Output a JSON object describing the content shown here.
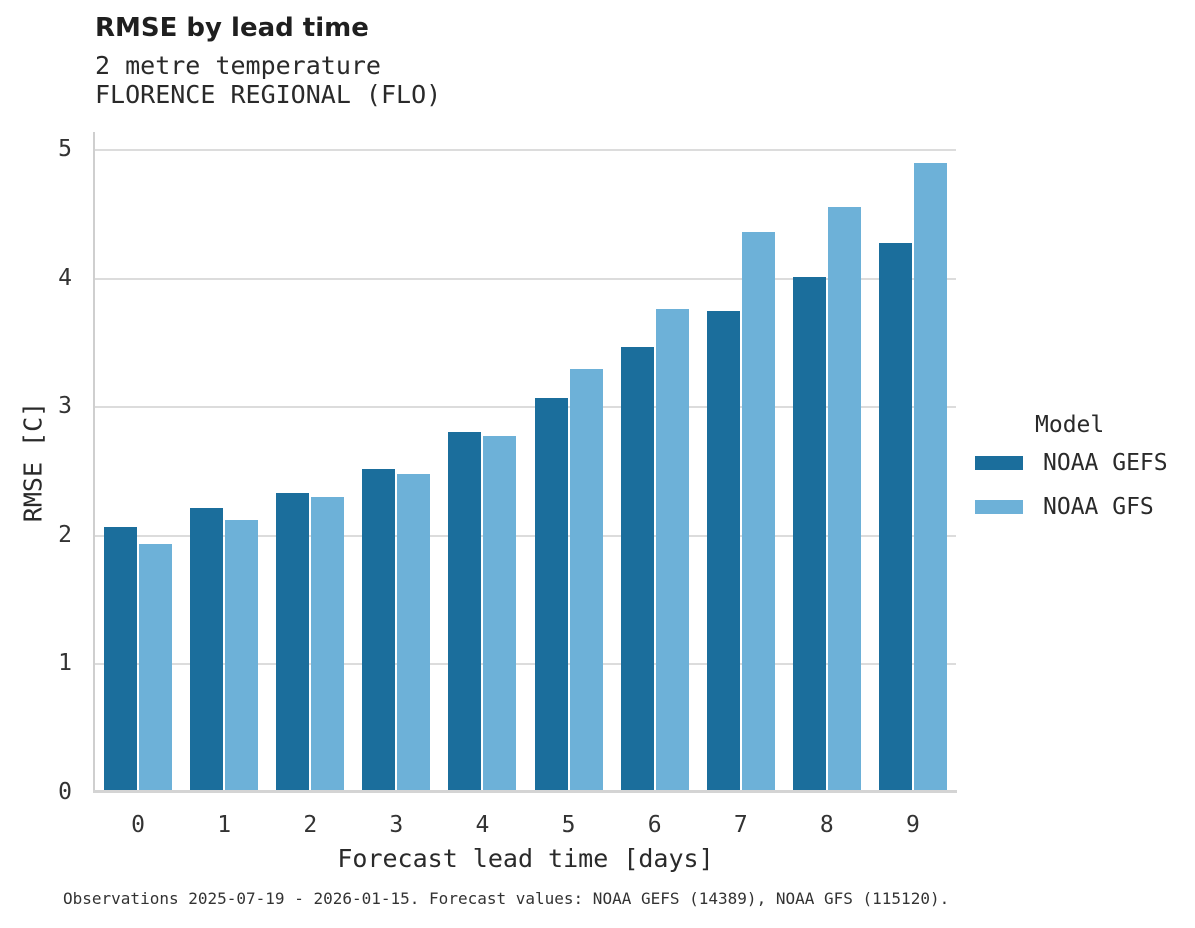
{
  "header": {
    "title": "RMSE by lead time",
    "subtitle_line1": "2 metre temperature",
    "subtitle_line2": "FLORENCE REGIONAL (FLO)"
  },
  "chart_data": {
    "type": "bar",
    "title": "RMSE by lead time",
    "subtitle": [
      "2 metre temperature",
      "FLORENCE REGIONAL (FLO)"
    ],
    "xlabel": "Forecast lead time [days]",
    "ylabel": "RMSE [C]",
    "categories": [
      "0",
      "1",
      "2",
      "3",
      "4",
      "5",
      "6",
      "7",
      "8",
      "9"
    ],
    "series": [
      {
        "name": "NOAA GEFS",
        "color": "#1b6e9c",
        "values": [
          2.07,
          2.22,
          2.33,
          2.52,
          2.81,
          3.07,
          3.47,
          3.75,
          4.01,
          4.28
        ]
      },
      {
        "name": "NOAA GFS",
        "color": "#6db1d8",
        "values": [
          1.94,
          2.12,
          2.3,
          2.48,
          2.78,
          3.3,
          3.76,
          4.36,
          4.56,
          4.9
        ]
      }
    ],
    "ylim": [
      0,
      5
    ],
    "yticks": [
      "0",
      "1",
      "2",
      "3",
      "4",
      "5"
    ],
    "grid": true,
    "legend_title": "Model",
    "legend_position": "right"
  },
  "legend": {
    "title": "Model",
    "items": [
      {
        "label": "NOAA GEFS",
        "color": "#1b6e9c"
      },
      {
        "label": "NOAA GFS",
        "color": "#6db1d8"
      }
    ]
  },
  "footer": {
    "caption": "Observations 2025-07-19 - 2026-01-15. Forecast values: NOAA GEFS (14389), NOAA GFS (115120)."
  },
  "colors": {
    "gridline": "#dcdcdc",
    "spine": "#cfcfcf",
    "baseline": "#d4d4d4",
    "background": "#ffffff"
  }
}
